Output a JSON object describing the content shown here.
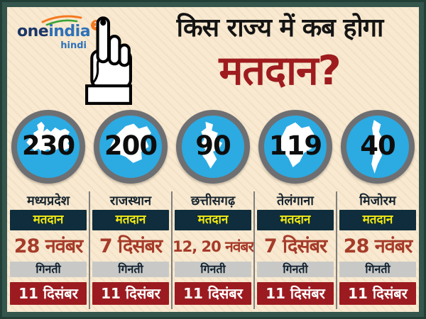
{
  "brand": {
    "name_bold": "one",
    "name_light": "india",
    "sub": "hindi",
    "badge": "1"
  },
  "title": {
    "line1": "किस राज्य में कब होगा",
    "line2": "मतदान?"
  },
  "labels": {
    "voting_label": "मतदान",
    "counting_label": "गिनती"
  },
  "states": [
    {
      "name": "मध्यप्रदेश",
      "seats": "230",
      "voting_date": "28 नवंबर",
      "counting_date": "11 दिसंबर",
      "map": "madhya-pradesh"
    },
    {
      "name": "राजस्थान",
      "seats": "200",
      "voting_date": "7 दिसंबर",
      "counting_date": "11 दिसंबर",
      "map": "rajasthan"
    },
    {
      "name": "छत्तीसगढ़",
      "seats": "90",
      "voting_date": "12, 20 नवंबर",
      "counting_date": "11 दिसंबर",
      "map": "chhattisgarh"
    },
    {
      "name": "तेलंगाना",
      "seats": "119",
      "voting_date": "7 दिसंबर",
      "counting_date": "11 दिसंबर",
      "map": "telangana"
    },
    {
      "name": "मिजोरम",
      "seats": "40",
      "voting_date": "28 नवंबर",
      "counting_date": "11 दिसंबर",
      "map": "mizoram"
    }
  ],
  "colors": {
    "frame_green": "#35564c",
    "background_cream": "#f8e9d0",
    "circle_blue": "#2caae2",
    "circle_ring_gray": "#6e6f72",
    "navy_bar": "#0f2d3c",
    "yellow_text": "#f2ea12",
    "date_red": "#a63b29",
    "counting_bar_gray": "#c8c9c7",
    "red_bar": "#9c1b20",
    "title_red": "#9e1b1e",
    "title_black": "#141414",
    "brand_orange": "#f4791f",
    "brand_blue_dark": "#1b3668",
    "brand_blue": "#2e71b8",
    "brand_green": "#3aa335"
  }
}
